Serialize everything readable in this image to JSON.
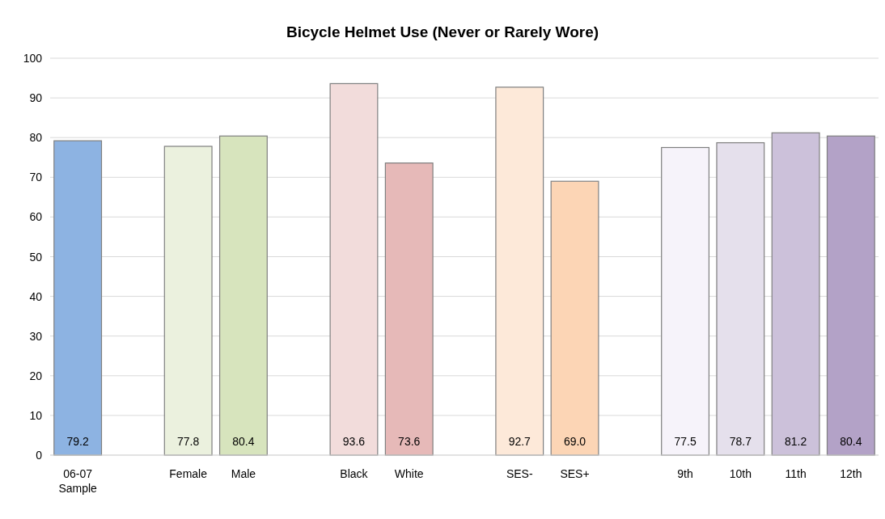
{
  "chart_data": {
    "type": "bar",
    "title": "Bicycle Helmet Use (Never or Rarely Wore)",
    "categories": [
      "06-07 Sample",
      null,
      "Female",
      "Male",
      null,
      "Black",
      "White",
      null,
      "SES-",
      "SES+",
      null,
      "9th",
      "10th",
      "11th",
      "12th"
    ],
    "values": [
      79.2,
      null,
      77.8,
      80.4,
      null,
      93.6,
      73.6,
      null,
      92.7,
      69.0,
      null,
      77.5,
      78.7,
      81.2,
      80.4
    ],
    "value_labels": [
      "79.2",
      null,
      "77.8",
      "80.4",
      null,
      "93.6",
      "73.6",
      null,
      "92.7",
      "69.0",
      null,
      "77.5",
      "78.7",
      "81.2",
      "80.4"
    ],
    "colors": [
      "#8db3e2",
      null,
      "#ebf1de",
      "#d7e4bd",
      null,
      "#f2dcdb",
      "#e6b9b8",
      null,
      "#fde9d9",
      "#fcd5b5",
      null,
      "#f6f3fa",
      "#e5e0ec",
      "#ccc1da",
      "#b3a2c7"
    ],
    "ylim": [
      0,
      100
    ],
    "yticks": [
      0,
      10,
      20,
      30,
      40,
      50,
      60,
      70,
      80,
      90,
      100
    ],
    "grid": "y"
  }
}
